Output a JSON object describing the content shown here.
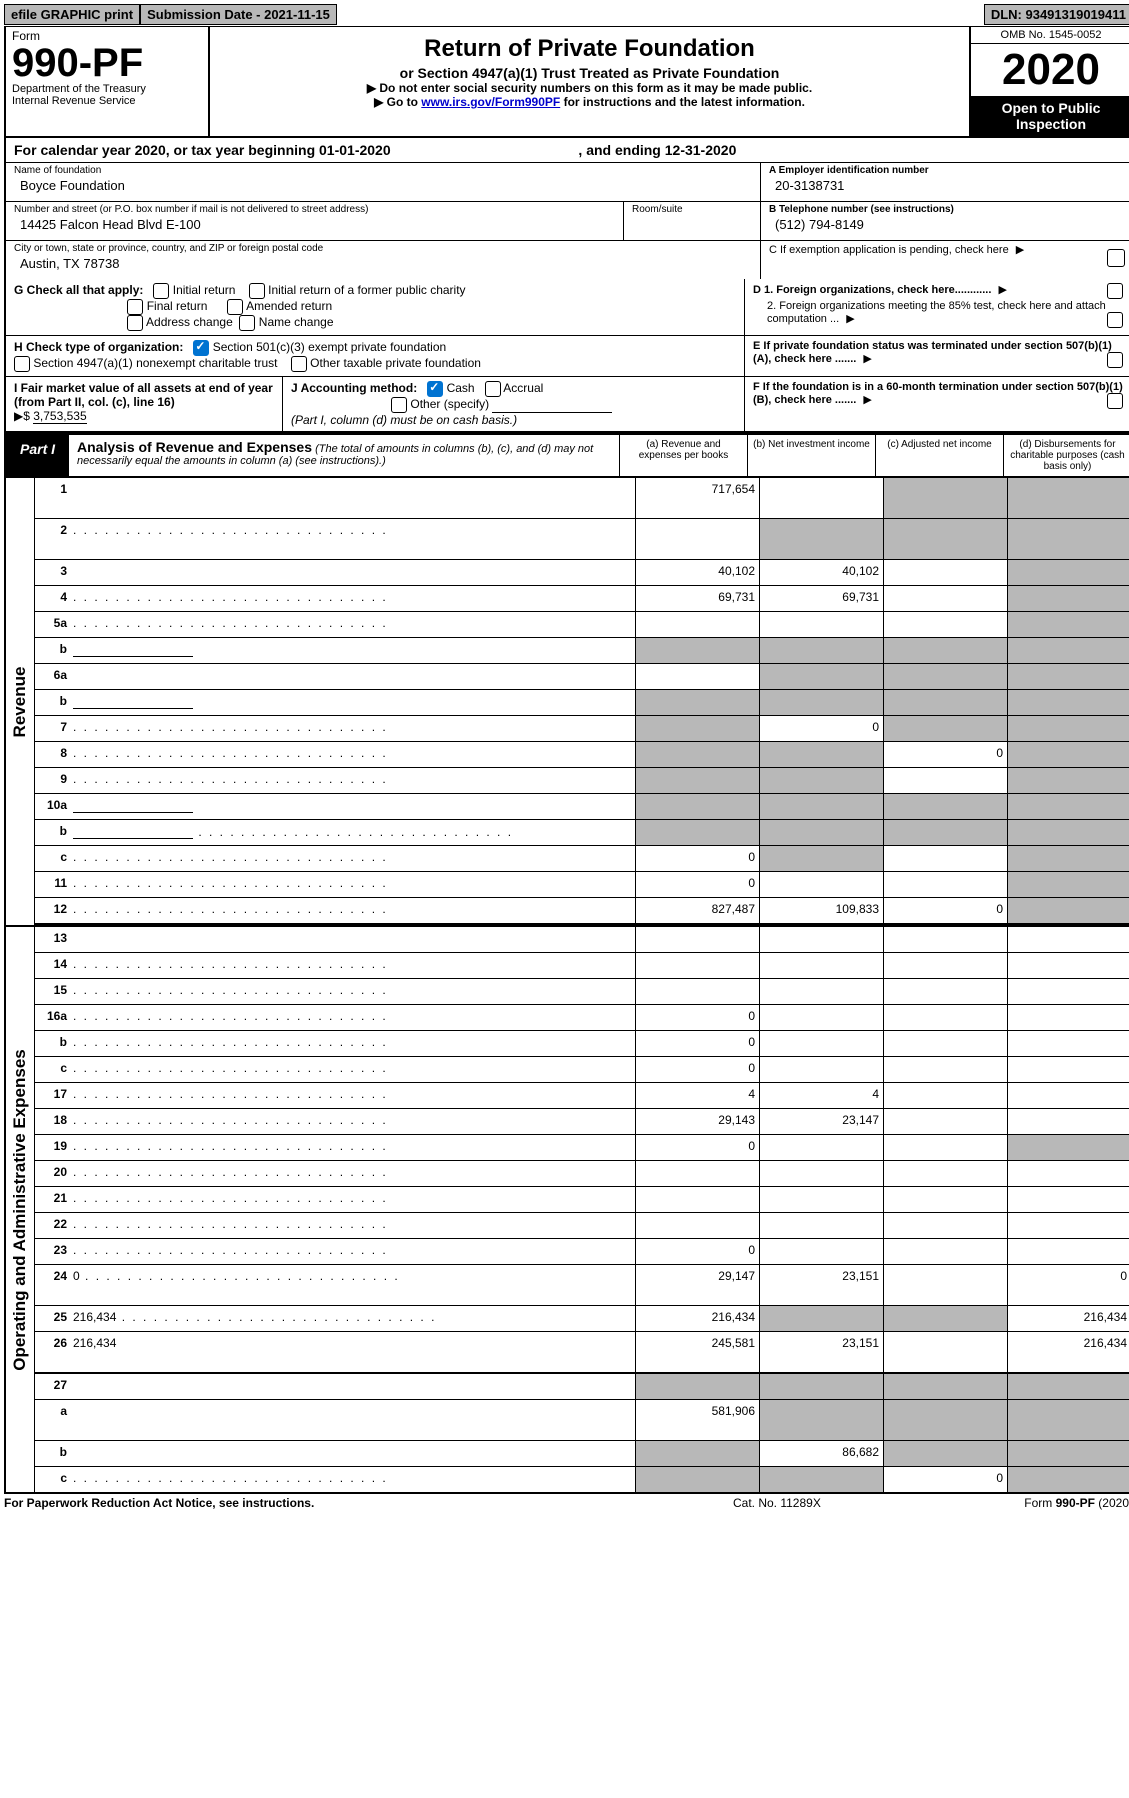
{
  "topbar": {
    "efile": "efile GRAPHIC print",
    "subdate_lbl": "Submission Date - 2021-11-15",
    "dln": "DLN: 93491319019411"
  },
  "header": {
    "form_label": "Form",
    "form_number": "990-PF",
    "dept": "Department of the Treasury",
    "irs": "Internal Revenue Service",
    "title": "Return of Private Foundation",
    "subtitle": "or Section 4947(a)(1) Trust Treated as Private Foundation",
    "note1": "▶ Do not enter social security numbers on this form as it may be made public.",
    "note2_pre": "▶ Go to ",
    "note2_link": "www.irs.gov/Form990PF",
    "note2_post": " for instructions and the latest information.",
    "omb": "OMB No. 1545-0052",
    "year": "2020",
    "open": "Open to Public Inspection"
  },
  "cal_year": {
    "pre": "For calendar year 2020, or tax year beginning 01-01-2020",
    "mid_spacer": "",
    "post": ", and ending 12-31-2020"
  },
  "ident": {
    "name_lbl": "Name of foundation",
    "name_val": "Boyce Foundation",
    "ein_lbl": "A Employer identification number",
    "ein_val": "20-3138731",
    "addr_lbl": "Number and street (or P.O. box number if mail is not delivered to street address)",
    "addr_val": "14425 Falcon Head Blvd E-100",
    "room_lbl": "Room/suite",
    "phone_lbl": "B Telephone number (see instructions)",
    "phone_val": "(512) 794-8149",
    "city_lbl": "City or town, state or province, country, and ZIP or foreign postal code",
    "city_val": "Austin, TX  78738",
    "pending_lbl": "C If exemption application is pending, check here"
  },
  "checks": {
    "G_lbl": "G Check all that apply:",
    "initial": "Initial return",
    "initial_former": "Initial return of a former public charity",
    "final": "Final return",
    "amended": "Amended return",
    "addr_chg": "Address change",
    "name_chg": "Name change",
    "D1": "D 1. Foreign organizations, check here............",
    "D2": "2. Foreign organizations meeting the 85% test, check here and attach computation ...",
    "H_lbl": "H Check type of organization:",
    "H_501c3": "Section 501(c)(3) exempt private foundation",
    "H_4947": "Section 4947(a)(1) nonexempt charitable trust",
    "H_other": "Other taxable private foundation",
    "E": "E If private foundation status was terminated under section 507(b)(1)(A), check here .......",
    "I_lbl": "I Fair market value of all assets at end of year (from Part II, col. (c), line 16)",
    "I_val": "3,753,535",
    "I_arrow": "▶$",
    "J_lbl": "J Accounting method:",
    "J_cash": "Cash",
    "J_accrual": "Accrual",
    "J_other": "Other (specify)",
    "J_note": "(Part I, column (d) must be on cash basis.)",
    "F": "F If the foundation is in a 60-month termination under section 507(b)(1)(B), check here ......."
  },
  "part1": {
    "tab": "Part I",
    "title": "Analysis of Revenue and Expenses",
    "note": "(The total of amounts in columns (b), (c), and (d) may not necessarily equal the amounts in column (a) (see instructions).)",
    "col_a": "(a) Revenue and expenses per books",
    "col_b": "(b) Net investment income",
    "col_c": "(c) Adjusted net income",
    "col_d": "(d) Disbursements for charitable purposes (cash basis only)"
  },
  "side_labels": {
    "revenue": "Revenue",
    "expenses": "Operating and Administrative Expenses"
  },
  "rows": [
    {
      "n": "1",
      "d": "",
      "a": "717,654",
      "b": "",
      "c": "",
      "bg": "",
      "cg": "g",
      "dg": "g",
      "tall": true
    },
    {
      "n": "2",
      "d": "",
      "dots": true,
      "a": "",
      "b": "",
      "c": "",
      "bg": "g",
      "cg": "g",
      "dg": "g",
      "tall": true
    },
    {
      "n": "3",
      "d": "",
      "a": "40,102",
      "b": "40,102",
      "c": "",
      "dg": "g"
    },
    {
      "n": "4",
      "d": "",
      "dots": true,
      "a": "69,731",
      "b": "69,731",
      "c": "",
      "dg": "g"
    },
    {
      "n": "5a",
      "d": "",
      "dots": true,
      "a": "",
      "b": "",
      "c": "",
      "dg": "g"
    },
    {
      "n": "b",
      "d": "",
      "input": true,
      "a": "",
      "b": "",
      "c": "",
      "ag": "g",
      "bg": "g",
      "cg": "g",
      "dg": "g"
    },
    {
      "n": "6a",
      "d": "",
      "a": "",
      "b": "",
      "c": "",
      "bg": "g",
      "cg": "g",
      "dg": "g"
    },
    {
      "n": "b",
      "d": "",
      "input": true,
      "a": "",
      "b": "",
      "c": "",
      "ag": "g",
      "bg": "g",
      "cg": "g",
      "dg": "g"
    },
    {
      "n": "7",
      "d": "",
      "dots": true,
      "a": "",
      "b": "0",
      "c": "",
      "ag": "g",
      "cg": "g",
      "dg": "g"
    },
    {
      "n": "8",
      "d": "",
      "dots": true,
      "a": "",
      "b": "",
      "c": "0",
      "ag": "g",
      "bg": "g",
      "dg": "g"
    },
    {
      "n": "9",
      "d": "",
      "dots": true,
      "a": "",
      "b": "",
      "c": "",
      "ag": "g",
      "bg": "g",
      "dg": "g"
    },
    {
      "n": "10a",
      "d": "",
      "input": true,
      "a": "",
      "b": "",
      "c": "",
      "ag": "g",
      "bg": "g",
      "cg": "g",
      "dg": "g"
    },
    {
      "n": "b",
      "d": "",
      "dots": true,
      "input": true,
      "a": "",
      "b": "",
      "c": "",
      "ag": "g",
      "bg": "g",
      "cg": "g",
      "dg": "g"
    },
    {
      "n": "c",
      "d": "",
      "dots": true,
      "a": "0",
      "b": "",
      "c": "",
      "bg": "g",
      "dg": "g"
    },
    {
      "n": "11",
      "d": "",
      "dots": true,
      "a": "0",
      "b": "",
      "c": "",
      "dg": "g"
    },
    {
      "n": "12",
      "d": "",
      "dots": true,
      "a": "827,487",
      "b": "109,833",
      "c": "0",
      "dg": "g",
      "dbl": true
    }
  ],
  "exp_rows": [
    {
      "n": "13",
      "d": "",
      "a": "",
      "b": "",
      "c": ""
    },
    {
      "n": "14",
      "d": "",
      "dots": true,
      "a": "",
      "b": "",
      "c": ""
    },
    {
      "n": "15",
      "d": "",
      "dots": true,
      "a": "",
      "b": "",
      "c": ""
    },
    {
      "n": "16a",
      "d": "",
      "dots": true,
      "a": "0",
      "b": "",
      "c": ""
    },
    {
      "n": "b",
      "d": "",
      "dots": true,
      "a": "0",
      "b": "",
      "c": ""
    },
    {
      "n": "c",
      "d": "",
      "dots": true,
      "a": "0",
      "b": "",
      "c": ""
    },
    {
      "n": "17",
      "d": "",
      "dots": true,
      "a": "4",
      "b": "4",
      "c": ""
    },
    {
      "n": "18",
      "d": "",
      "dots": true,
      "a": "29,143",
      "b": "23,147",
      "c": ""
    },
    {
      "n": "19",
      "d": "",
      "dots": true,
      "a": "0",
      "b": "",
      "c": "",
      "dg": "g"
    },
    {
      "n": "20",
      "d": "",
      "dots": true,
      "a": "",
      "b": "",
      "c": ""
    },
    {
      "n": "21",
      "d": "",
      "dots": true,
      "a": "",
      "b": "",
      "c": ""
    },
    {
      "n": "22",
      "d": "",
      "dots": true,
      "a": "",
      "b": "",
      "c": ""
    },
    {
      "n": "23",
      "d": "",
      "dots": true,
      "a": "0",
      "b": "",
      "c": ""
    },
    {
      "n": "24",
      "d": "0",
      "dots": true,
      "a": "29,147",
      "b": "23,151",
      "c": "",
      "tall": true
    },
    {
      "n": "25",
      "d": "216,434",
      "dots": true,
      "a": "216,434",
      "b": "",
      "c": "",
      "bg": "g",
      "cg": "g"
    },
    {
      "n": "26",
      "d": "216,434",
      "a": "245,581",
      "b": "23,151",
      "c": "",
      "tall": true,
      "dbl": true
    },
    {
      "n": "27",
      "d": "",
      "a": "",
      "b": "",
      "c": "",
      "ag": "g",
      "bg": "g",
      "cg": "g",
      "dg": "g"
    },
    {
      "n": "a",
      "d": "",
      "a": "581,906",
      "b": "",
      "c": "",
      "bg": "g",
      "cg": "g",
      "dg": "g",
      "tall": true
    },
    {
      "n": "b",
      "d": "",
      "a": "",
      "b": "86,682",
      "c": "",
      "ag": "g",
      "cg": "g",
      "dg": "g"
    },
    {
      "n": "c",
      "d": "",
      "dots": true,
      "a": "",
      "b": "",
      "c": "0",
      "ag": "g",
      "bg": "g",
      "dg": "g"
    }
  ],
  "footer": {
    "left": "For Paperwork Reduction Act Notice, see instructions.",
    "mid": "Cat. No. 11289X",
    "right": "Form 990-PF (2020)"
  }
}
